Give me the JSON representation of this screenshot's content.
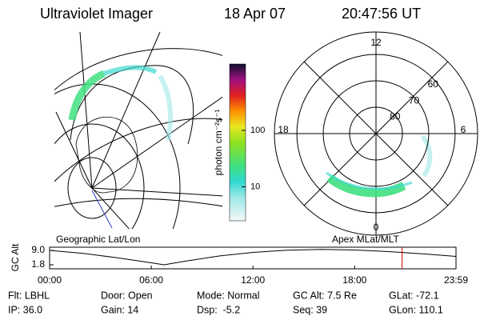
{
  "header": {
    "instrument": "Ultraviolet Imager",
    "date": "18 Apr 07",
    "time": "20:47:56 UT"
  },
  "colorbar": {
    "label": "photon cm⁻²s⁻¹",
    "scale": "log",
    "lim": [
      2.5,
      1500
    ],
    "ticks": [
      10,
      100
    ]
  },
  "polar_plot": {
    "mlt_labels": [
      "12",
      "6",
      "0",
      "18"
    ],
    "lat_ticks": [
      60,
      70,
      80
    ],
    "lat_lim": [
      90,
      51.5
    ]
  },
  "map_label": "Geographic Lat/Lon",
  "polar_label": "Apex MLat/MLT",
  "chart_data": {
    "type": "line",
    "ylabel": "GC Alt",
    "x": [
      0,
      2,
      4,
      6,
      6.75,
      8,
      10,
      12,
      14,
      16,
      18,
      20,
      22,
      23.98
    ],
    "values": [
      9.0,
      7.5,
      5.3,
      2.8,
      1.8,
      3.6,
      6.2,
      8.0,
      9.1,
      9.5,
      9.2,
      8.4,
      7.3,
      6.0
    ],
    "color": "#000000",
    "xlim": [
      0,
      23.98
    ],
    "ylim": [
      -0.2,
      10.6
    ],
    "xticks": [
      {
        "value": 0,
        "label": "00:00"
      },
      {
        "value": 6,
        "label": "06:00"
      },
      {
        "value": 12,
        "label": "12:00"
      },
      {
        "value": 18,
        "label": "18:00"
      },
      {
        "value": 23.98,
        "label": "23:59"
      }
    ],
    "yticks": [
      {
        "value": 1.8,
        "label": "1.8"
      },
      {
        "value": 9.0,
        "label": "9.0"
      }
    ],
    "current_time": 20.8,
    "current_color": "#cc0000"
  },
  "footer": [
    [
      "Flt: LBHL",
      "IP: 36.0"
    ],
    [
      "Door: Open",
      "Gain: 14"
    ],
    [
      "Mode: Normal",
      "Dsp:  -5.2"
    ],
    [
      "GC Alt: 7.5 Re",
      "Seq: 39"
    ],
    [
      "GLat: -72.1",
      "GLon: 110.1"
    ]
  ]
}
